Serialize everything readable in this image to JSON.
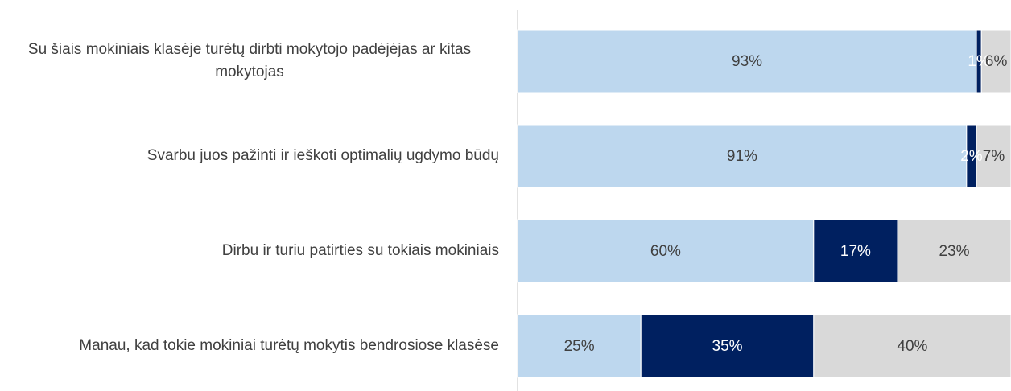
{
  "chart_data": {
    "type": "bar",
    "orientation": "horizontal",
    "stacked": true,
    "categories": [
      "Su šiais mokiniais klasėje turėtų dirbti mokytojo padėjėjas ar kitas mokytojas",
      "Svarbu juos pažinti ir ieškoti optimalių ugdymo būdų",
      "Dirbu ir turiu patirties su tokiais mokiniais",
      "Manau, kad tokie mokiniai turėtų mokytis bendrosiose klasėse"
    ],
    "series": [
      {
        "color": "#bdd7ee",
        "label_color": "#404040",
        "values": [
          93,
          91,
          60,
          25
        ],
        "value_labels": [
          "93%",
          "91%",
          "60%",
          "25%"
        ]
      },
      {
        "color": "#002060",
        "label_color": "#ffffff",
        "values": [
          1,
          2,
          17,
          35
        ],
        "value_labels": [
          "1%",
          "2%",
          "17%",
          "35%"
        ]
      },
      {
        "color": "#d9d9d9",
        "label_color": "#404040",
        "values": [
          6,
          7,
          23,
          40
        ],
        "value_labels": [
          "6%",
          "7%",
          "23%",
          "40%"
        ]
      }
    ],
    "xlim": [
      0,
      100
    ]
  }
}
